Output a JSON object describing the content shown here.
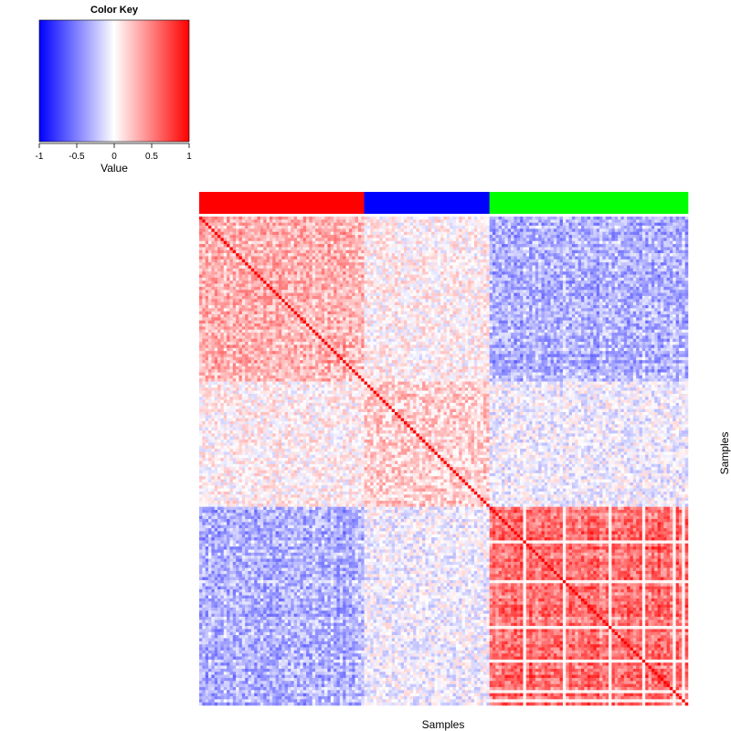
{
  "chart_data": {
    "type": "heatmap",
    "title": "",
    "xlabel": "Samples",
    "ylabel": "Samples",
    "n_samples": 160,
    "color_scale": {
      "low": "#0000ff",
      "mid": "#ffffff",
      "high": "#ff0000"
    },
    "color_key": {
      "title": "Color Key",
      "xlabel": "Value",
      "range": [
        -1,
        1
      ],
      "ticks": [
        -1,
        -0.5,
        0,
        0.5,
        1
      ],
      "tick_labels": [
        "-1",
        "-0.5",
        "0",
        "0.5",
        "1"
      ]
    },
    "sample_groups": [
      {
        "color": "#ff0000",
        "count": 54
      },
      {
        "color": "#0000ff",
        "count": 41
      },
      {
        "color": "#00ff00",
        "count": 65
      }
    ],
    "approx_mean_correlation": {
      "red-red": 0.3,
      "red-blue": 0.05,
      "red-green": -0.3,
      "blue-blue": 0.2,
      "blue-green": -0.05,
      "green-green": 0.55
    },
    "diagonal_value": 1
  }
}
